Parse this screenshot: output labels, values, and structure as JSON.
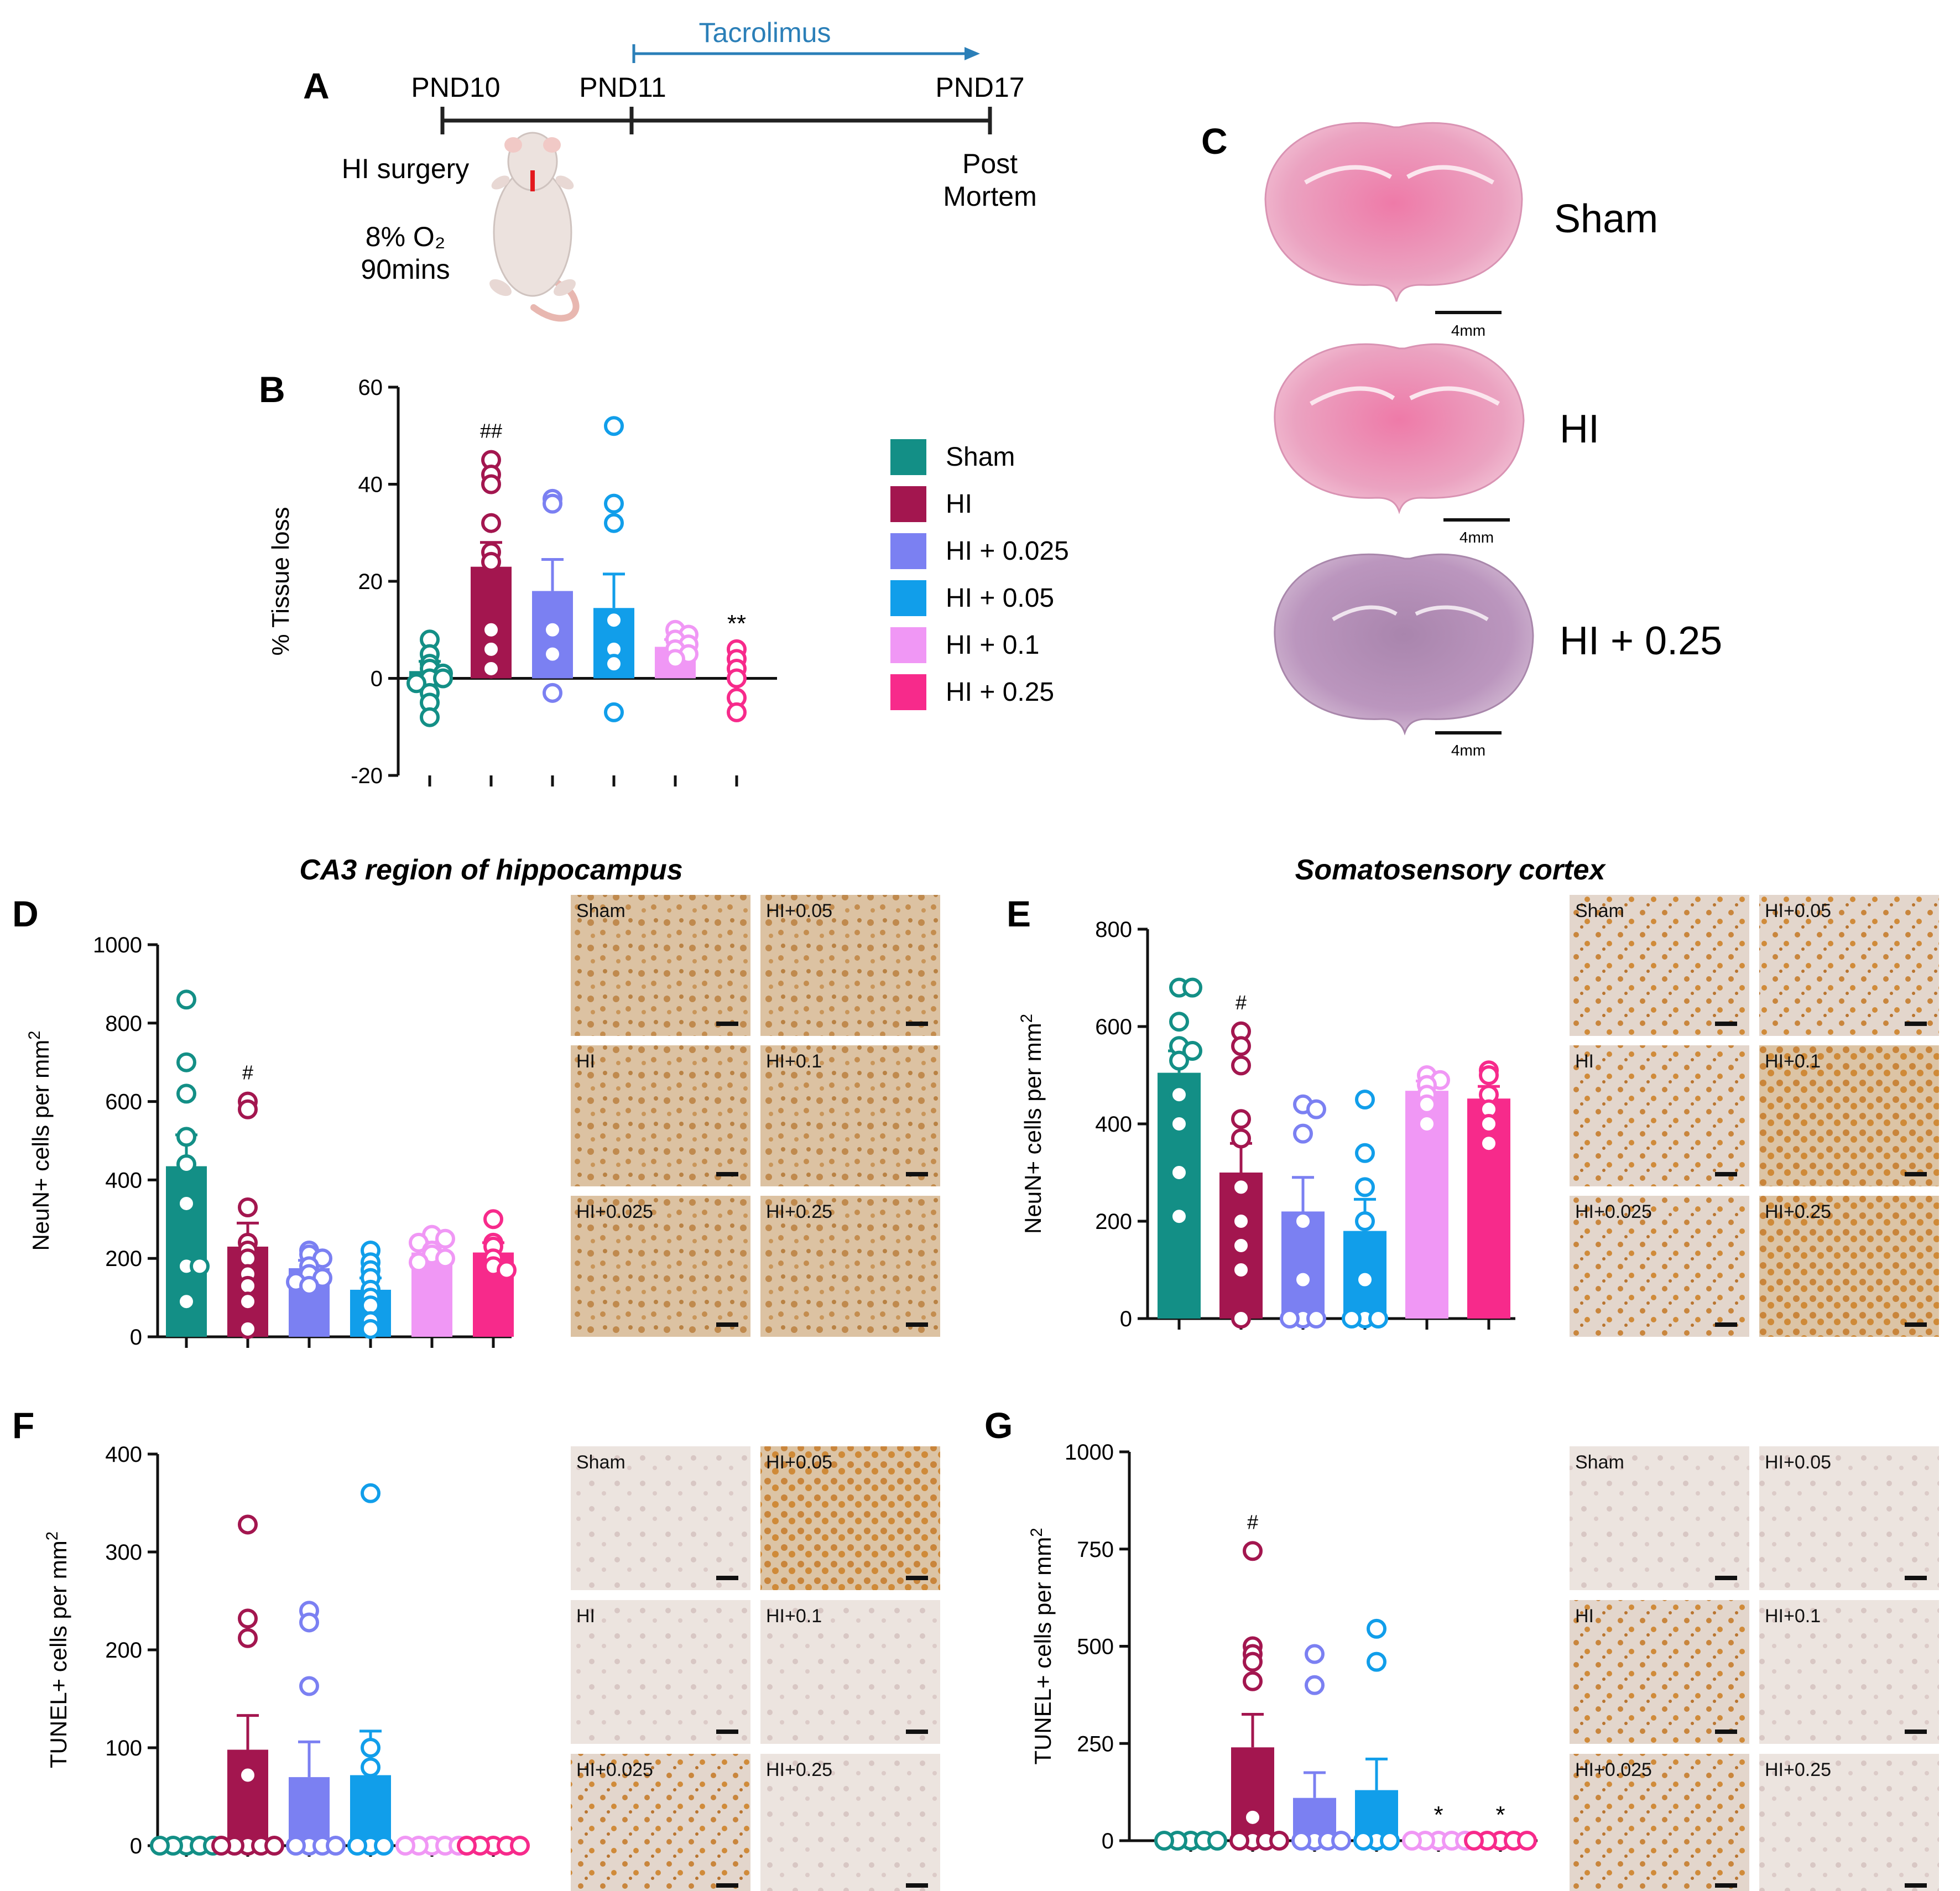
{
  "figure": {
    "panel_letters": [
      "A",
      "B",
      "C",
      "D",
      "E",
      "F",
      "G"
    ]
  },
  "timeline": {
    "treatment_label": "Tacrolimus",
    "points": [
      {
        "label": "PND10",
        "top": "",
        "sub1": "HI surgery",
        "sub2": ""
      },
      {
        "label": "PND11",
        "sub1": "",
        "sub2": ""
      },
      {
        "label": "PND17",
        "sub1": "Post",
        "sub2": "Mortem"
      }
    ],
    "hypoxia": [
      "8% O₂",
      "90mins"
    ],
    "colors": {
      "arrow": "#2b7fb8",
      "line": "#222222"
    }
  },
  "legend": {
    "entries": [
      {
        "name": "Sham",
        "color": "#138f86"
      },
      {
        "name": "HI",
        "color": "#a3164f"
      },
      {
        "name": "HI + 0.025",
        "color": "#7b80f2"
      },
      {
        "name": "HI + 0.05",
        "color": "#119eea"
      },
      {
        "name": "HI + 0.1",
        "color": "#f097f5"
      },
      {
        "name": "HI + 0.25",
        "color": "#f72a8b"
      }
    ]
  },
  "histology_C": {
    "scale_label": "4mm",
    "sections": [
      {
        "label": "Sham",
        "tint": "#e9a4c0"
      },
      {
        "label": "HI",
        "tint": "#ec9cbc"
      },
      {
        "label": "HI + 0.25",
        "tint": "#b990b8"
      }
    ]
  },
  "section_titles": {
    "hippocampus": "CA3 region of hippocampus",
    "cortex": "Somatosensory cortex"
  },
  "micro_labels": [
    "Sham",
    "HI+0.05",
    "HI",
    "HI+0.1",
    "HI+0.025",
    "HI+0.25"
  ],
  "chart_data": [
    {
      "panel": "B",
      "type": "bar",
      "title": "",
      "ylabel": "% Tissue loss",
      "xlabel": "",
      "ylim": [
        -20,
        60
      ],
      "yticks": [
        -20,
        0,
        20,
        40,
        60
      ],
      "categories": [
        "Sham",
        "HI",
        "HI + 0.025",
        "HI + 0.05",
        "HI + 0.1",
        "HI + 0.25"
      ],
      "values": [
        1.5,
        23,
        18,
        14.5,
        6.5,
        0
      ],
      "errors": [
        2,
        5,
        6.5,
        7,
        1.5,
        2
      ],
      "points": [
        [
          8,
          5,
          3,
          2,
          1,
          0,
          0,
          -1,
          -3,
          -5,
          -8
        ],
        [
          45,
          42,
          40,
          32,
          26,
          24,
          10,
          6,
          2
        ],
        [
          37,
          36,
          10,
          5,
          -3
        ],
        [
          52,
          36,
          32,
          12,
          6,
          3,
          -7
        ],
        [
          10,
          9,
          8,
          7,
          6,
          5,
          4
        ],
        [
          6,
          4,
          2,
          0,
          -4,
          -7
        ]
      ],
      "annotations": [
        "",
        "##",
        "",
        "",
        "",
        "**"
      ],
      "colors": [
        "#138f86",
        "#a3164f",
        "#7b80f2",
        "#119eea",
        "#f097f5",
        "#f72a8b"
      ]
    },
    {
      "panel": "D",
      "type": "bar",
      "title": "CA3 region of hippocampus",
      "ylabel": "NeuN+ cells per mm2",
      "xlabel": "",
      "ylim": [
        0,
        1000
      ],
      "yticks": [
        0,
        200,
        400,
        600,
        800,
        1000
      ],
      "categories": [
        "Sham",
        "HI",
        "HI + 0.025",
        "HI + 0.05",
        "HI + 0.1",
        "HI + 0.25"
      ],
      "values": [
        435,
        230,
        175,
        120,
        215,
        215
      ],
      "errors": [
        80,
        60,
        20,
        30,
        15,
        25
      ],
      "points": [
        [
          860,
          700,
          620,
          510,
          440,
          340,
          180,
          180,
          90
        ],
        [
          600,
          580,
          330,
          240,
          220,
          200,
          160,
          130,
          90,
          20
        ],
        [
          220,
          210,
          200,
          180,
          160,
          150,
          140,
          130
        ],
        [
          220,
          190,
          170,
          150,
          120,
          100,
          80,
          40,
          20
        ],
        [
          260,
          250,
          240,
          220,
          210,
          200,
          190
        ],
        [
          300,
          240,
          230,
          200,
          180,
          170
        ]
      ],
      "annotations": [
        "",
        "#",
        "",
        "",
        "",
        ""
      ],
      "colors": [
        "#138f86",
        "#a3164f",
        "#7b80f2",
        "#119eea",
        "#f097f5",
        "#f72a8b"
      ]
    },
    {
      "panel": "E",
      "type": "bar",
      "title": "Somatosensory cortex",
      "ylabel": "NeuN+ cells per mm2",
      "xlabel": "",
      "ylim": [
        0,
        800
      ],
      "yticks": [
        0,
        200,
        400,
        600,
        800
      ],
      "categories": [
        "Sham",
        "HI",
        "HI + 0.025",
        "HI + 0.05",
        "HI + 0.1",
        "HI + 0.25"
      ],
      "values": [
        505,
        300,
        220,
        180,
        468,
        452
      ],
      "errors": [
        45,
        60,
        70,
        65,
        20,
        25
      ],
      "points": [
        [
          680,
          680,
          610,
          560,
          550,
          530,
          460,
          400,
          300,
          210
        ],
        [
          590,
          560,
          520,
          410,
          370,
          270,
          200,
          150,
          100,
          0
        ],
        [
          440,
          430,
          380,
          200,
          80,
          0,
          0,
          0
        ],
        [
          450,
          340,
          270,
          200,
          80,
          0,
          0,
          0
        ],
        [
          500,
          490,
          480,
          460,
          440,
          400
        ],
        [
          510,
          500,
          460,
          430,
          400,
          360
        ]
      ],
      "annotations": [
        "",
        "#",
        "",
        "",
        "",
        ""
      ],
      "colors": [
        "#138f86",
        "#a3164f",
        "#7b80f2",
        "#119eea",
        "#f097f5",
        "#f72a8b"
      ]
    },
    {
      "panel": "F",
      "type": "bar",
      "title": "",
      "ylabel": "TUNEL+ cells per mm2",
      "xlabel": "",
      "ylim": [
        0,
        400
      ],
      "yticks": [
        0,
        100,
        200,
        300,
        400
      ],
      "categories": [
        "Sham",
        "HI",
        "HI + 0.025",
        "HI + 0.05",
        "HI + 0.1",
        "HI + 0.25"
      ],
      "values": [
        0,
        98,
        70,
        72,
        0,
        0
      ],
      "errors": [
        0,
        35,
        36,
        45,
        0,
        0
      ],
      "points": [
        [
          0,
          0,
          0,
          0,
          0
        ],
        [
          328,
          232,
          212,
          72,
          0,
          0,
          0,
          0,
          0
        ],
        [
          240,
          228,
          163,
          0,
          0,
          0,
          0
        ],
        [
          360,
          100,
          80,
          0,
          0,
          0
        ],
        [
          0,
          0,
          0,
          0,
          0
        ],
        [
          0,
          0,
          0,
          0,
          0
        ]
      ],
      "annotations": [
        "",
        "",
        "",
        "",
        "",
        ""
      ],
      "colors": [
        "#138f86",
        "#a3164f",
        "#7b80f2",
        "#119eea",
        "#f097f5",
        "#f72a8b"
      ]
    },
    {
      "panel": "G",
      "type": "bar",
      "title": "",
      "ylabel": "TUNEL+ cells per mm2",
      "xlabel": "",
      "ylim": [
        0,
        1000
      ],
      "yticks": [
        0,
        250,
        500,
        750,
        1000
      ],
      "categories": [
        "Sham",
        "HI",
        "HI + 0.025",
        "HI + 0.05",
        "HI + 0.1",
        "HI + 0.25"
      ],
      "values": [
        0,
        240,
        110,
        130,
        0,
        0
      ],
      "errors": [
        0,
        85,
        65,
        80,
        0,
        0
      ],
      "points": [
        [
          0,
          0,
          0,
          0,
          0
        ],
        [
          745,
          500,
          480,
          460,
          410,
          60,
          0,
          0,
          0,
          0
        ],
        [
          480,
          400,
          0,
          0,
          0,
          0
        ],
        [
          545,
          460,
          0,
          0,
          0
        ],
        [
          0,
          0,
          0,
          0,
          0
        ],
        [
          0,
          0,
          0,
          0,
          0
        ]
      ],
      "annotations": [
        "",
        "#",
        "",
        "",
        "*",
        "*"
      ],
      "colors": [
        "#138f86",
        "#a3164f",
        "#7b80f2",
        "#119eea",
        "#f097f5",
        "#f72a8b"
      ]
    }
  ]
}
